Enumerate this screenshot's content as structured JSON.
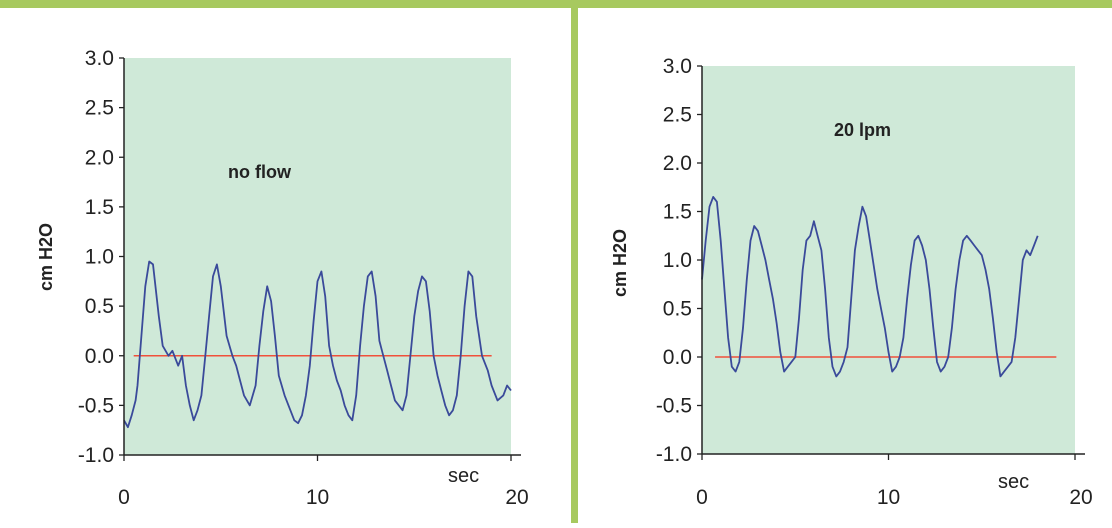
{
  "chart_data": [
    {
      "type": "line",
      "annotation": "no flow",
      "ylabel": "cm H2O",
      "xunit": "sec",
      "xlim": [
        0,
        20
      ],
      "ylim": [
        -1.0,
        3.0
      ],
      "xticks": [
        "0",
        "10",
        "20"
      ],
      "yticks": [
        "3.0",
        "2.5",
        "2.0",
        "1.5",
        "1.0",
        "0.5",
        "0.0",
        "-0.5",
        "-1.0"
      ],
      "grid": false,
      "colors": {
        "plot_bg": "#cfe9d8",
        "trace": "#3a4a9a",
        "baseline": "#f0503a"
      },
      "baseline": {
        "x": [
          0.5,
          19
        ],
        "y": 0.0
      },
      "series": [
        {
          "x": [
            0,
            0.2,
            0.4,
            0.6,
            0.7,
            0.9,
            1.1,
            1.3,
            1.5,
            1.8,
            2.0,
            2.3,
            2.5,
            2.8,
            3.0,
            3.2,
            3.4,
            3.6,
            3.8,
            4.0,
            4.2,
            4.4,
            4.6,
            4.8,
            5.0,
            5.3,
            5.6,
            5.8,
            6.0,
            6.2,
            6.5,
            6.8,
            7.0,
            7.2,
            7.4,
            7.6,
            7.8,
            8.0,
            8.3,
            8.6,
            8.8,
            9.0,
            9.2,
            9.4,
            9.6,
            9.8,
            10.0,
            10.2,
            10.4,
            10.6,
            10.8,
            11.0,
            11.2,
            11.4,
            11.6,
            11.8,
            12.0,
            12.2,
            12.4,
            12.6,
            12.8,
            13.0,
            13.2,
            13.4,
            13.6,
            13.8,
            14.0,
            14.2,
            14.4,
            14.6,
            14.8,
            15.0,
            15.2,
            15.4,
            15.6,
            15.8,
            16.0,
            16.2,
            16.4,
            16.6,
            16.8,
            17.0,
            17.2,
            17.4,
            17.6,
            17.8,
            18.0,
            18.2,
            18.5,
            18.8,
            19.0,
            19.3,
            19.6,
            19.8,
            20.0
          ],
          "y": [
            -0.65,
            -0.72,
            -0.6,
            -0.45,
            -0.3,
            0.2,
            0.7,
            0.95,
            0.92,
            0.4,
            0.1,
            0.0,
            0.05,
            -0.1,
            0.0,
            -0.3,
            -0.5,
            -0.65,
            -0.55,
            -0.4,
            0.0,
            0.4,
            0.8,
            0.92,
            0.7,
            0.2,
            0.0,
            -0.1,
            -0.25,
            -0.4,
            -0.5,
            -0.3,
            0.1,
            0.45,
            0.7,
            0.55,
            0.2,
            -0.2,
            -0.4,
            -0.55,
            -0.65,
            -0.68,
            -0.6,
            -0.4,
            -0.1,
            0.35,
            0.75,
            0.85,
            0.6,
            0.1,
            -0.1,
            -0.25,
            -0.35,
            -0.5,
            -0.6,
            -0.65,
            -0.4,
            0.1,
            0.5,
            0.8,
            0.85,
            0.6,
            0.15,
            0.0,
            -0.15,
            -0.3,
            -0.45,
            -0.5,
            -0.55,
            -0.4,
            0.0,
            0.4,
            0.65,
            0.8,
            0.75,
            0.45,
            0.0,
            -0.2,
            -0.35,
            -0.5,
            -0.6,
            -0.55,
            -0.4,
            0.0,
            0.5,
            0.85,
            0.8,
            0.4,
            0.0,
            -0.15,
            -0.3,
            -0.45,
            -0.4,
            -0.3,
            -0.35
          ]
        }
      ]
    },
    {
      "type": "line",
      "annotation": "20 lpm",
      "ylabel": "cm H2O",
      "xunit": "sec",
      "xlim": [
        0,
        20
      ],
      "ylim": [
        -1.0,
        3.0
      ],
      "xticks": [
        "0",
        "10",
        "20"
      ],
      "yticks": [
        "3.0",
        "2.5",
        "2.0",
        "1.5",
        "1.0",
        "0.5",
        "0.0",
        "-0.5",
        "-1.0"
      ],
      "grid": false,
      "colors": {
        "plot_bg": "#cfe9d8",
        "trace": "#3a4a9a",
        "baseline": "#f0503a"
      },
      "baseline": {
        "x": [
          0.7,
          19
        ],
        "y": 0.0
      },
      "series": [
        {
          "x": [
            0,
            0.2,
            0.4,
            0.6,
            0.8,
            1.0,
            1.2,
            1.4,
            1.6,
            1.8,
            2.0,
            2.2,
            2.4,
            2.6,
            2.8,
            3.0,
            3.2,
            3.4,
            3.6,
            3.8,
            4.0,
            4.2,
            4.4,
            4.6,
            4.8,
            5.0,
            5.2,
            5.4,
            5.6,
            5.8,
            6.0,
            6.2,
            6.4,
            6.6,
            6.8,
            7.0,
            7.2,
            7.4,
            7.6,
            7.8,
            8.0,
            8.2,
            8.4,
            8.6,
            8.8,
            9.0,
            9.2,
            9.4,
            9.6,
            9.8,
            10.0,
            10.2,
            10.4,
            10.6,
            10.8,
            11.0,
            11.2,
            11.4,
            11.6,
            11.8,
            12.0,
            12.2,
            12.4,
            12.6,
            12.8,
            13.0,
            13.2,
            13.4,
            13.6,
            13.8,
            14.0,
            14.2,
            14.4,
            14.6,
            14.8,
            15.0,
            15.2,
            15.4,
            15.6,
            15.8,
            16.0,
            16.2,
            16.4,
            16.6,
            16.8,
            17.0,
            17.2,
            17.4,
            17.6,
            17.8,
            18.0
          ],
          "y": [
            0.8,
            1.2,
            1.55,
            1.65,
            1.6,
            1.2,
            0.7,
            0.2,
            -0.1,
            -0.15,
            -0.05,
            0.3,
            0.8,
            1.2,
            1.35,
            1.3,
            1.15,
            1.0,
            0.8,
            0.6,
            0.35,
            0.05,
            -0.15,
            -0.1,
            -0.05,
            0.0,
            0.4,
            0.9,
            1.2,
            1.25,
            1.4,
            1.25,
            1.1,
            0.7,
            0.2,
            -0.1,
            -0.2,
            -0.15,
            -0.05,
            0.1,
            0.6,
            1.1,
            1.35,
            1.55,
            1.45,
            1.2,
            0.95,
            0.7,
            0.5,
            0.3,
            0.05,
            -0.15,
            -0.1,
            0.0,
            0.2,
            0.6,
            0.95,
            1.2,
            1.25,
            1.15,
            1.0,
            0.7,
            0.3,
            -0.05,
            -0.15,
            -0.1,
            0.0,
            0.3,
            0.7,
            1.0,
            1.2,
            1.25,
            1.2,
            1.15,
            1.1,
            1.05,
            0.9,
            0.7,
            0.4,
            0.05,
            -0.2,
            -0.15,
            -0.1,
            -0.05,
            0.2,
            0.6,
            1.0,
            1.1,
            1.05,
            1.15,
            1.25
          ]
        }
      ]
    }
  ]
}
